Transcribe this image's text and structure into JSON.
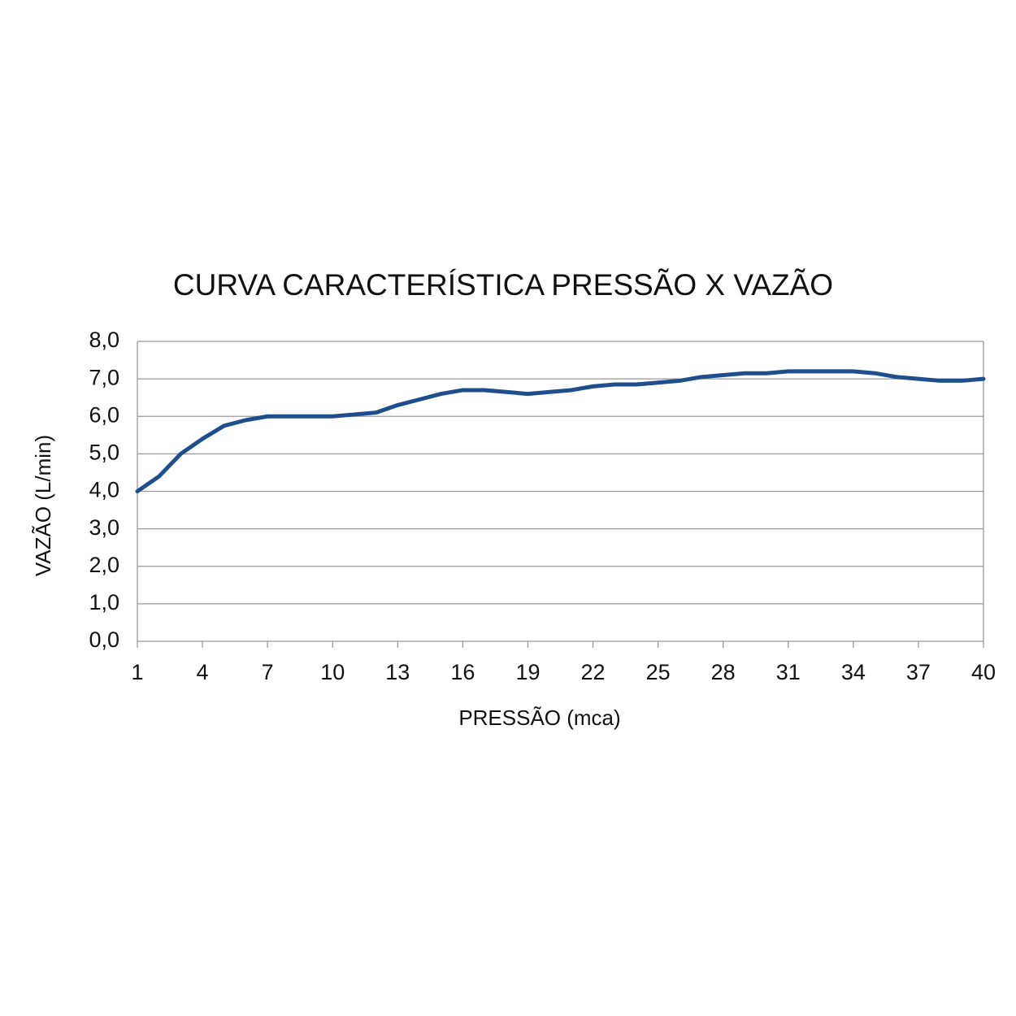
{
  "chart_data": {
    "type": "line",
    "title": "CURVA CARACTERÍSTICA PRESSÃO X VAZÃO",
    "x_label": "PRESSÃO (mca)",
    "y_label": "VAZÃO (L/min)",
    "x": [
      1,
      2,
      3,
      4,
      5,
      6,
      7,
      8,
      9,
      10,
      11,
      12,
      13,
      14,
      15,
      16,
      17,
      18,
      19,
      20,
      21,
      22,
      23,
      24,
      25,
      26,
      27,
      28,
      29,
      30,
      31,
      32,
      33,
      34,
      35,
      36,
      37,
      38,
      39,
      40
    ],
    "series": [
      {
        "color": "#1f4e8c",
        "values": [
          4.0,
          4.4,
          5.0,
          5.4,
          5.75,
          5.9,
          6.0,
          6.0,
          6.0,
          6.0,
          6.05,
          6.1,
          6.3,
          6.45,
          6.6,
          6.7,
          6.7,
          6.65,
          6.6,
          6.65,
          6.7,
          6.8,
          6.85,
          6.85,
          6.9,
          6.95,
          7.05,
          7.1,
          7.15,
          7.15,
          7.2,
          7.2,
          7.2,
          7.2,
          7.15,
          7.05,
          7.0,
          6.95,
          6.95,
          7.0
        ]
      }
    ],
    "xlim": [
      1,
      40
    ],
    "xticks": [
      1,
      4,
      7,
      10,
      13,
      16,
      19,
      22,
      25,
      28,
      31,
      34,
      37,
      40
    ],
    "ylim": [
      0,
      8
    ],
    "yticks": [
      {
        "value": 0,
        "label": "0,0"
      },
      {
        "value": 1,
        "label": "1,0"
      },
      {
        "value": 2,
        "label": "2,0"
      },
      {
        "value": 3,
        "label": "3,0"
      },
      {
        "value": 4,
        "label": "4,0"
      },
      {
        "value": 5,
        "label": "5,0"
      },
      {
        "value": 6,
        "label": "6,0"
      },
      {
        "value": 7,
        "label": "7,0"
      },
      {
        "value": 8,
        "label": "8,0"
      }
    ],
    "grid": true
  }
}
